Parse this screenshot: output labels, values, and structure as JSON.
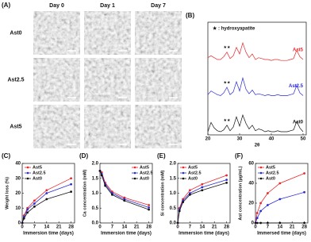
{
  "micrographs": {
    "panel_label": "(A)",
    "columns": [
      "Day 0",
      "Day 1",
      "Day 7"
    ],
    "rows": [
      "Ast0",
      "Ast2.5",
      "Ast5"
    ]
  },
  "chart_data": [
    {
      "type": "spectrum",
      "panel_label": "(B)",
      "xlabel": "2θ",
      "legend_note": "★ : hydroxyapatite",
      "x": [
        20,
        21,
        22,
        23,
        24,
        25,
        26,
        27,
        28,
        29,
        30,
        31,
        32,
        33,
        34,
        35,
        36,
        37,
        38,
        39,
        40,
        41,
        42,
        43,
        44,
        45,
        46,
        47,
        48,
        49,
        50
      ],
      "xlim": [
        20,
        51
      ],
      "xticks": [
        20,
        30,
        40,
        50
      ],
      "series": [
        {
          "name": "Ast5",
          "color": "#e8282b",
          "peak_label": "★★",
          "values": [
            84,
            86,
            84,
            82,
            82,
            85,
            90,
            83,
            86,
            95,
            88,
            100,
            90,
            84,
            88,
            82,
            84,
            83,
            82,
            82,
            81,
            82,
            82,
            81,
            81,
            81,
            82,
            83,
            92,
            85,
            82
          ]
        },
        {
          "name": "Ast2.5",
          "color": "#2b2bd8",
          "peak_label": "★★",
          "values": [
            44,
            48,
            46,
            44,
            43,
            46,
            52,
            44,
            47,
            58,
            48,
            62,
            50,
            45,
            49,
            44,
            45,
            44,
            43,
            44,
            43,
            43,
            44,
            43,
            43,
            43,
            44,
            45,
            54,
            46,
            43
          ]
        },
        {
          "name": "Ast0",
          "color": "#111111",
          "peak_label": "★★",
          "values": [
            4,
            14,
            8,
            5,
            4,
            6,
            11,
            5,
            9,
            20,
            10,
            22,
            13,
            7,
            11,
            5,
            7,
            6,
            4,
            5,
            4,
            4,
            5,
            4,
            4,
            4,
            5,
            6,
            15,
            8,
            4
          ]
        }
      ]
    },
    {
      "type": "line",
      "panel_label": "(C)",
      "xlabel": "Immersion time (days)",
      "ylabel": "Weight loss (%)",
      "x": [
        0,
        1,
        3,
        7,
        14,
        28
      ],
      "xlim": [
        0,
        30
      ],
      "xticks": [
        0,
        7,
        14,
        21,
        28
      ],
      "ylim": [
        0,
        40
      ],
      "yticks": [
        0,
        10,
        20,
        30,
        40
      ],
      "legend": "upper left",
      "series": [
        {
          "name": "Ast5",
          "color": "#e8282b",
          "values": [
            0,
            5,
            10,
            15,
            22,
            30
          ]
        },
        {
          "name": "Ast2.5",
          "color": "#2b2bd8",
          "values": [
            0,
            4,
            9,
            13,
            20,
            26
          ]
        },
        {
          "name": "Ast0",
          "color": "#111111",
          "values": [
            0,
            3,
            7,
            11,
            16,
            21
          ]
        }
      ]
    },
    {
      "type": "line",
      "panel_label": "(D)",
      "xlabel": "Immersion time (days)",
      "ylabel": "Ca concentration (mM)",
      "x": [
        0,
        1,
        3,
        7,
        14,
        28
      ],
      "xlim": [
        0,
        30
      ],
      "xticks": [
        0,
        7,
        14,
        21,
        28
      ],
      "ylim": [
        0,
        2
      ],
      "yticks": [
        {
          "value": 0,
          "label": "0.0"
        },
        0.5,
        {
          "value": 1,
          "label": "1.0"
        },
        1.5,
        {
          "value": 2,
          "label": "2.0"
        }
      ],
      "legend": "upper right",
      "series": [
        {
          "name": "Ast5",
          "color": "#e8282b",
          "values": [
            1.75,
            1.7,
            1.35,
            1.05,
            0.85,
            0.6
          ]
        },
        {
          "name": "Ast2.5",
          "color": "#2b2bd8",
          "values": [
            1.75,
            1.65,
            1.3,
            1.0,
            0.8,
            0.52
          ]
        },
        {
          "name": "Ast0",
          "color": "#111111",
          "values": [
            1.75,
            1.6,
            1.25,
            0.95,
            0.75,
            0.45
          ]
        }
      ]
    },
    {
      "type": "line",
      "panel_label": "(E)",
      "xlabel": "Immersion time (days)",
      "ylabel": "Si concentration (mM)",
      "x": [
        0,
        1,
        3,
        7,
        14,
        28
      ],
      "xlim": [
        0,
        30
      ],
      "xticks": [
        0,
        7,
        14,
        21,
        28
      ],
      "ylim": [
        0,
        2
      ],
      "yticks": [
        {
          "value": 0,
          "label": "0.0"
        },
        0.5,
        {
          "value": 1,
          "label": "1.0"
        },
        1.5,
        {
          "value": 2,
          "label": "2.0"
        }
      ],
      "legend": "upper left",
      "series": [
        {
          "name": "Ast5",
          "color": "#e8282b",
          "values": [
            0,
            0.5,
            0.8,
            1.1,
            1.3,
            1.6
          ]
        },
        {
          "name": "Ast2.5",
          "color": "#2b2bd8",
          "values": [
            0,
            0.45,
            0.75,
            1.0,
            1.2,
            1.45
          ]
        },
        {
          "name": "Ast0",
          "color": "#111111",
          "values": [
            0,
            0.4,
            0.7,
            0.95,
            1.1,
            1.35
          ]
        }
      ]
    },
    {
      "type": "line",
      "panel_label": "(F)",
      "xlabel": "Immersed time (days)",
      "ylabel": "Ast concentration (µg/mL)",
      "x": [
        0,
        1,
        3,
        7,
        14,
        28
      ],
      "xlim": [
        0,
        30
      ],
      "xticks": [
        0,
        7,
        14,
        21,
        28
      ],
      "ylim": [
        0,
        60
      ],
      "yticks": [
        0,
        20,
        40,
        60
      ],
      "legend": "upper left",
      "series": [
        {
          "name": "Ast5",
          "color": "#e8282b",
          "values": [
            0,
            10,
            20,
            30,
            40,
            50
          ]
        },
        {
          "name": "Ast2.5",
          "color": "#2b2bd8",
          "values": [
            0,
            5,
            12,
            18,
            24,
            31
          ]
        },
        {
          "name": "Ast0",
          "color": "#111111",
          "values": [
            0,
            0,
            0,
            0,
            0,
            0
          ]
        }
      ]
    }
  ]
}
